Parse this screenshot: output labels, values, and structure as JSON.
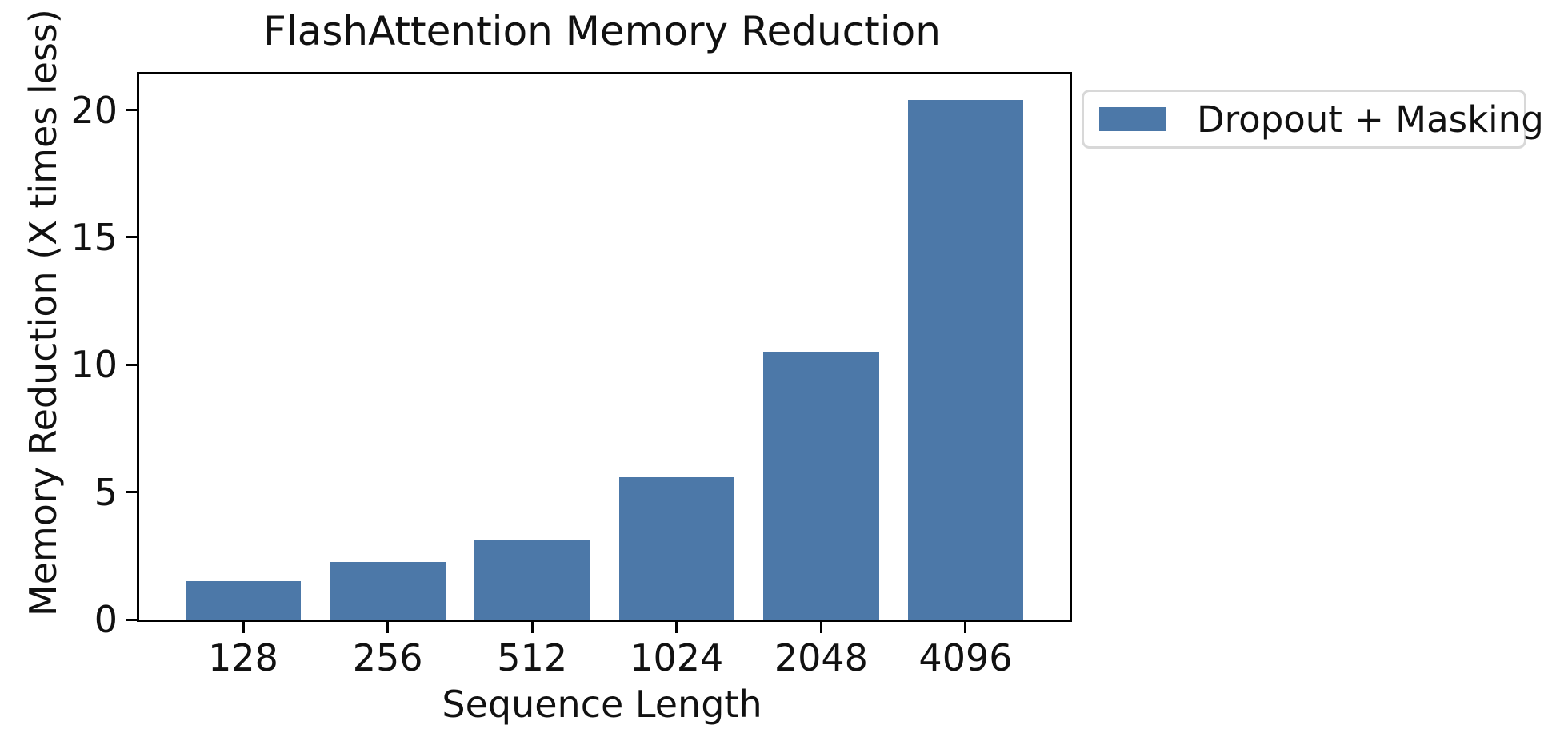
{
  "chart_data": {
    "type": "bar",
    "title": "FlashAttention Memory Reduction",
    "xlabel": "Sequence Length",
    "ylabel": "Memory Reduction (X times less)",
    "categories": [
      "128",
      "256",
      "512",
      "1024",
      "2048",
      "4096"
    ],
    "series": [
      {
        "name": "Dropout + Masking",
        "values": [
          1.5,
          2.25,
          3.1,
          5.6,
          10.5,
          20.4
        ]
      }
    ],
    "yticks": [
      0,
      5,
      10,
      15,
      20
    ],
    "ylim": [
      0,
      21.4
    ],
    "bar_color": "#4C78A8",
    "grid": false,
    "legend_position": "outside-right",
    "colors": {
      "spine": "#000000",
      "text": "#111111",
      "legend_border": "#d8d8d8"
    }
  }
}
